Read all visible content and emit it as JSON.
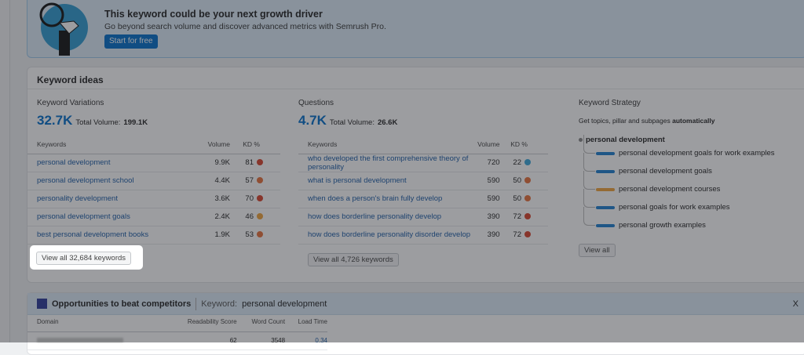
{
  "banner": {
    "title": "This keyword could be your next growth driver",
    "text": "Go beyond search volume and discover advanced metrics with Semrush Pro.",
    "button": "Start for free"
  },
  "ideas": {
    "title": "Keyword ideas",
    "variations": {
      "title": "Keyword Variations",
      "count": "32.7K",
      "total_label": "Total Volume:",
      "total": "199.1K",
      "headers": [
        "Keywords",
        "Volume",
        "KD %"
      ],
      "rows": [
        {
          "kw": "personal development",
          "vol": "9.9K",
          "kd": "81",
          "color": "#d9432b"
        },
        {
          "kw": "personal development school",
          "vol": "4.4K",
          "kd": "57",
          "color": "#e8703a"
        },
        {
          "kw": "personality development",
          "vol": "3.6K",
          "kd": "70",
          "color": "#d9432b"
        },
        {
          "kw": "personal development goals",
          "vol": "2.4K",
          "kd": "46",
          "color": "#f0a33a"
        },
        {
          "kw": "best personal development books",
          "vol": "1.9K",
          "kd": "53",
          "color": "#e8703a"
        }
      ],
      "button": "View all 32,684 keywords"
    },
    "questions": {
      "title": "Questions",
      "count": "4.7K",
      "total_label": "Total Volume:",
      "total": "26.6K",
      "headers": [
        "Keywords",
        "Volume",
        "KD %"
      ],
      "rows": [
        {
          "kw": "who developed the first comprehensive theory of personality",
          "vol": "720",
          "kd": "22",
          "color": "#3aa7d9"
        },
        {
          "kw": "what is personal development",
          "vol": "590",
          "kd": "50",
          "color": "#e8703a"
        },
        {
          "kw": "when does a person's brain fully develop",
          "vol": "590",
          "kd": "50",
          "color": "#e8703a"
        },
        {
          "kw": "how does borderline personality develop",
          "vol": "390",
          "kd": "72",
          "color": "#d9432b"
        },
        {
          "kw": "how does borderline personality disorder develop",
          "vol": "390",
          "kd": "72",
          "color": "#d9432b"
        }
      ],
      "button": "View all 4,726 keywords"
    },
    "strategy": {
      "title": "Keyword Strategy",
      "subtitle": "Get topics, pillar and subpages",
      "subtitle_bold": "automatically",
      "root": "personal development",
      "items": [
        {
          "label": "personal development goals for work examples",
          "color": "#1d7fd0"
        },
        {
          "label": "personal development goals",
          "color": "#1d7fd0"
        },
        {
          "label": "personal development courses",
          "color": "#f0a33a"
        },
        {
          "label": "personal goals for work examples",
          "color": "#1d7fd0"
        },
        {
          "label": "personal growth examples",
          "color": "#1d7fd0"
        }
      ],
      "button": "View all"
    }
  },
  "opportunities": {
    "title": "Opportunities to beat competitors",
    "keyword_label": "Keyword:",
    "keyword": "personal development",
    "close": "X",
    "headers": [
      "Domain",
      "Readability Score",
      "Word Count",
      "Load Time"
    ],
    "row": {
      "readability": "62",
      "words": "3548",
      "load": "0.34"
    }
  }
}
